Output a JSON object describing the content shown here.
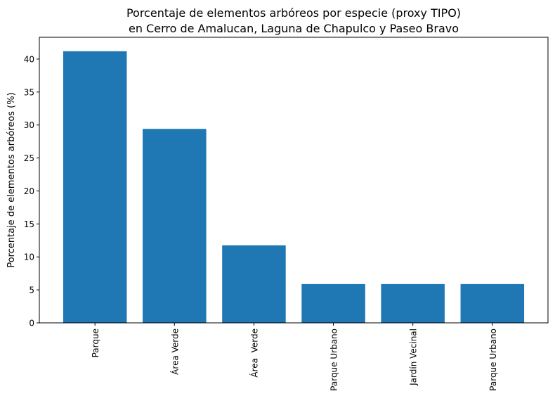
{
  "chart_data": {
    "type": "bar",
    "title": [
      "Porcentaje de elementos arbóreos por especie (proxy TIPO)",
      "en Cerro de Amalucan, Laguna de Chapulco y Paseo Bravo"
    ],
    "xlabel": "",
    "ylabel": "Porcentaje de elementos arbóreos (%)",
    "categories": [
      "Parque",
      "Área Verde",
      "Área  Verde",
      "Parque Urbano",
      "Jardín Vecinal",
      "Parque Urbano"
    ],
    "values": [
      41.18,
      29.41,
      11.76,
      5.88,
      5.88,
      5.88
    ],
    "ylim": [
      0,
      43.3
    ],
    "yticks": [
      0,
      5,
      10,
      15,
      20,
      25,
      30,
      35,
      40
    ],
    "grid": false,
    "bar_color": "#1f77b4"
  }
}
